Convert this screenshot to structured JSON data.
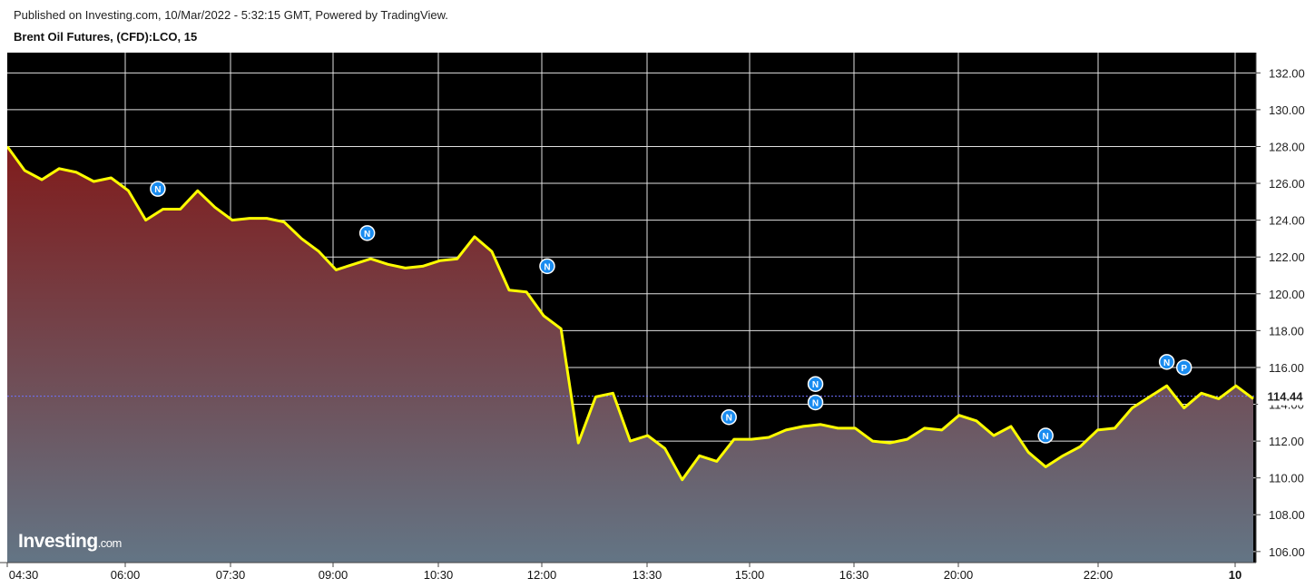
{
  "header": {
    "published": "Published on Investing.com, 10/Mar/2022 - 5:32:15 GMT, Powered by TradingView.",
    "symbol": "Brent Oil Futures, (CFD):LCO, 15"
  },
  "logo": {
    "brand": "Investing",
    "suffix": ".com"
  },
  "colors": {
    "plot_bg": "#000000",
    "line": "#ffff00",
    "fill_top": "#801c1c",
    "fill_bottom": "#637585",
    "grid": "#e0e0e0",
    "marker": "#1a8cf0",
    "price_label_bg": "#ffffff",
    "price_label_text": "#1f4bd1",
    "price_line": "#7070ff"
  },
  "chart_data": {
    "type": "area",
    "title": "Brent Oil Futures, (CFD):LCO, 15",
    "x_tick_labels": [
      "04:30",
      "06:00",
      "07:30",
      "09:00",
      "10:30",
      "12:00",
      "13:30",
      "15:00",
      "16:30",
      "20:00",
      "22:00",
      "10"
    ],
    "y_tick_labels": [
      "132.00",
      "130.00",
      "128.00",
      "126.00",
      "124.00",
      "122.00",
      "120.00",
      "118.00",
      "116.00",
      "114.00",
      "112.00",
      "110.00",
      "108.00",
      "106.00"
    ],
    "ylim": [
      105.4,
      133.1
    ],
    "last_price": 114.44,
    "last_price_label": "114.44",
    "grid": true,
    "values": [
      128.0,
      126.7,
      126.2,
      126.8,
      126.6,
      126.1,
      126.3,
      125.6,
      124.0,
      124.6,
      124.6,
      125.6,
      124.7,
      124.0,
      124.1,
      124.1,
      123.9,
      123.0,
      122.3,
      121.3,
      121.6,
      121.9,
      121.6,
      121.4,
      121.5,
      121.8,
      121.9,
      123.1,
      122.3,
      120.2,
      120.1,
      118.8,
      118.1,
      111.9,
      114.4,
      114.6,
      112.0,
      112.3,
      111.6,
      109.9,
      111.2,
      110.9,
      112.1,
      112.1,
      112.2,
      112.6,
      112.8,
      112.9,
      112.7,
      112.7,
      112.0,
      111.9,
      112.1,
      112.7,
      112.6,
      113.4,
      113.1,
      112.3,
      112.8,
      111.4,
      110.6,
      111.2,
      111.7,
      112.6,
      112.7,
      113.8,
      114.4,
      115.0,
      113.8,
      114.6,
      114.3,
      115.0,
      114.3
    ],
    "markers": [
      {
        "label": "N",
        "index": 8.7,
        "value": 125.7
      },
      {
        "label": "N",
        "index": 20.8,
        "value": 123.3
      },
      {
        "label": "N",
        "index": 31.2,
        "value": 121.5
      },
      {
        "label": "N",
        "index": 41.7,
        "value": 113.3
      },
      {
        "label": "N",
        "index": 46.7,
        "value": 115.1
      },
      {
        "label": "N",
        "index": 46.7,
        "value": 114.1
      },
      {
        "label": "N",
        "index": 60.0,
        "value": 112.3
      },
      {
        "label": "N",
        "index": 67.0,
        "value": 116.3
      },
      {
        "label": "P",
        "index": 68.0,
        "value": 116.0
      }
    ]
  }
}
